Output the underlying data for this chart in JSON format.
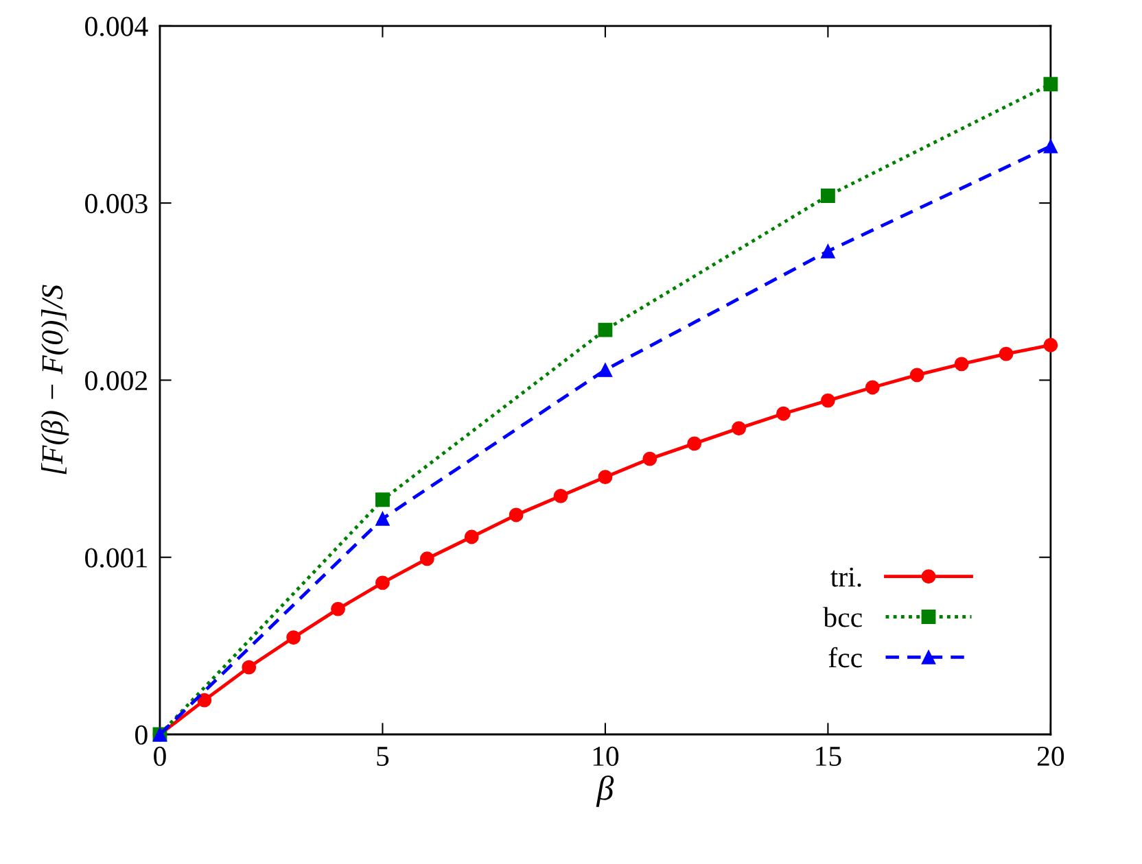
{
  "chart_data": {
    "type": "line",
    "xlabel": "β",
    "ylabel": "[F(β) − F(0)]/S",
    "xlim": [
      0,
      20
    ],
    "xticks": [
      0,
      5,
      10,
      15,
      20
    ],
    "ylim": [
      0,
      0.004
    ],
    "yticks": [
      0,
      0.001,
      0.002,
      0.003,
      0.004
    ],
    "grid": false,
    "legend": "bottom right",
    "series": [
      {
        "name": "tri.",
        "color": "#ff0000",
        "marker": "circle",
        "line_style": "solid",
        "x": [
          0,
          1,
          2,
          3,
          4,
          5,
          6,
          7,
          8,
          9,
          10,
          11,
          12,
          13,
          14,
          15,
          16,
          17,
          18,
          19,
          20
        ],
        "values": [
          0,
          0.000193,
          0.000379,
          0.000547,
          0.000708,
          0.000856,
          0.000992,
          0.001115,
          0.001239,
          0.001346,
          0.001453,
          0.001556,
          0.001642,
          0.001728,
          0.001811,
          0.001885,
          0.001959,
          0.002029,
          0.002091,
          0.002148,
          0.002198
        ]
      },
      {
        "name": "bcc",
        "color": "#008000",
        "marker": "square",
        "line_style": "dotted",
        "x": [
          0,
          5,
          10,
          15,
          20
        ],
        "values": [
          0,
          0.001325,
          0.002284,
          0.003041,
          0.003671
        ]
      },
      {
        "name": "fcc",
        "color": "#0000ff",
        "marker": "triangle",
        "line_style": "dashed",
        "x": [
          0,
          5,
          10,
          15,
          20
        ],
        "values": [
          0,
          0.001218,
          0.002058,
          0.002728,
          0.003321
        ]
      }
    ]
  }
}
